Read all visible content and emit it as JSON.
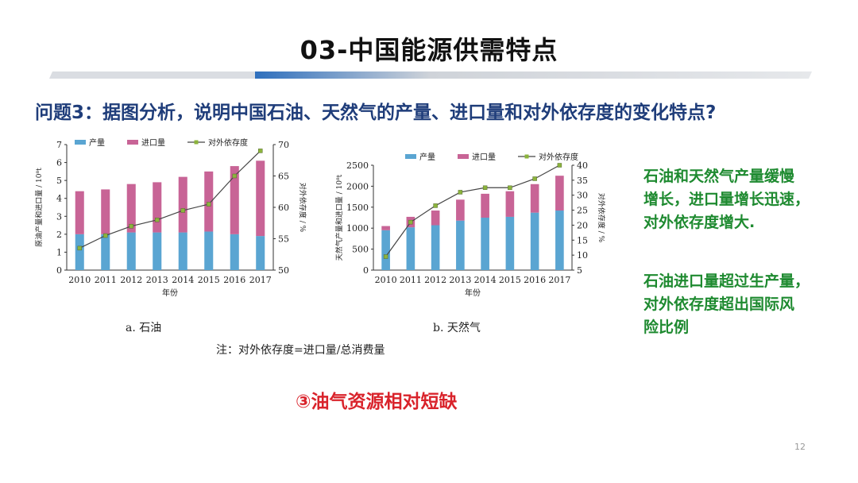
{
  "slide": {
    "title": "03-中国能源供需特点",
    "question": "问题3：据图分析，说明中国石油、天然气的产量、进口量和对外依存度的变化特点?",
    "note": "注：对外依存度=进口量/总消费量",
    "side_text_1": [
      "石油和天然气产量缓慢",
      "增长，进口量增长迅速，",
      "对外依存度增大."
    ],
    "side_text_2": [
      "石油进口量超过生产量，",
      "对外依存度超出国际风",
      "险比例"
    ],
    "conclusion": "③油气资源相对短缺",
    "page_number": "12",
    "colors": {
      "production": "#5aa5d2",
      "import": "#c86496",
      "dependence": "#444444",
      "marker": "#8cb43c",
      "question": "#1f3d7a",
      "green": "#1e8a30",
      "red": "#d9232b"
    }
  },
  "chart_data": [
    {
      "type": "bar",
      "stacked": true,
      "caption": "a. 石油",
      "categories": [
        "2010",
        "2011",
        "2012",
        "2013",
        "2014",
        "2015",
        "2016",
        "2017"
      ],
      "xlabel": "年份",
      "ylabel": "原油产量和进口量 / 10⁸t",
      "y2label": "对外依存度 / %",
      "ylim": [
        0,
        7
      ],
      "yticks": [
        0,
        1,
        2,
        3,
        4,
        5,
        6,
        7
      ],
      "y2lim": [
        50,
        70
      ],
      "y2ticks": [
        50,
        55,
        60,
        65,
        70
      ],
      "legend": [
        "产量",
        "进口量",
        "对外依存度"
      ],
      "series": [
        {
          "name": "产量",
          "values": [
            2.0,
            2.0,
            2.1,
            2.1,
            2.1,
            2.15,
            2.0,
            1.9
          ]
        },
        {
          "name": "进口量",
          "values": [
            2.4,
            2.5,
            2.7,
            2.8,
            3.1,
            3.35,
            3.8,
            4.2
          ]
        },
        {
          "name": "对外依存度",
          "axis": "right",
          "values": [
            53.5,
            55.5,
            57,
            58,
            59.5,
            60.5,
            65,
            69
          ]
        }
      ]
    },
    {
      "type": "bar",
      "stacked": true,
      "caption": "b. 天然气",
      "categories": [
        "2010",
        "2011",
        "2012",
        "2013",
        "2014",
        "2015",
        "2016",
        "2017"
      ],
      "xlabel": "年份",
      "ylabel": "天然气产量和进口量 / 10⁸t",
      "y2label": "对外依存度 / %",
      "ylim": [
        0,
        2500
      ],
      "yticks": [
        0,
        500,
        1000,
        1500,
        2000,
        2500
      ],
      "y2lim": [
        5,
        40
      ],
      "y2ticks": [
        5,
        10,
        15,
        20,
        25,
        30,
        35,
        40
      ],
      "legend": [
        "产量",
        "进口量",
        "对外依存度"
      ],
      "series": [
        {
          "name": "产量",
          "values": [
            950,
            1020,
            1070,
            1180,
            1250,
            1270,
            1370,
            1420
          ]
        },
        {
          "name": "进口量",
          "values": [
            100,
            250,
            350,
            500,
            570,
            610,
            680,
            830
          ]
        },
        {
          "name": "对外依存度",
          "axis": "right",
          "values": [
            9.5,
            21,
            26.5,
            31,
            32.5,
            32.5,
            35.5,
            40
          ]
        }
      ]
    }
  ]
}
